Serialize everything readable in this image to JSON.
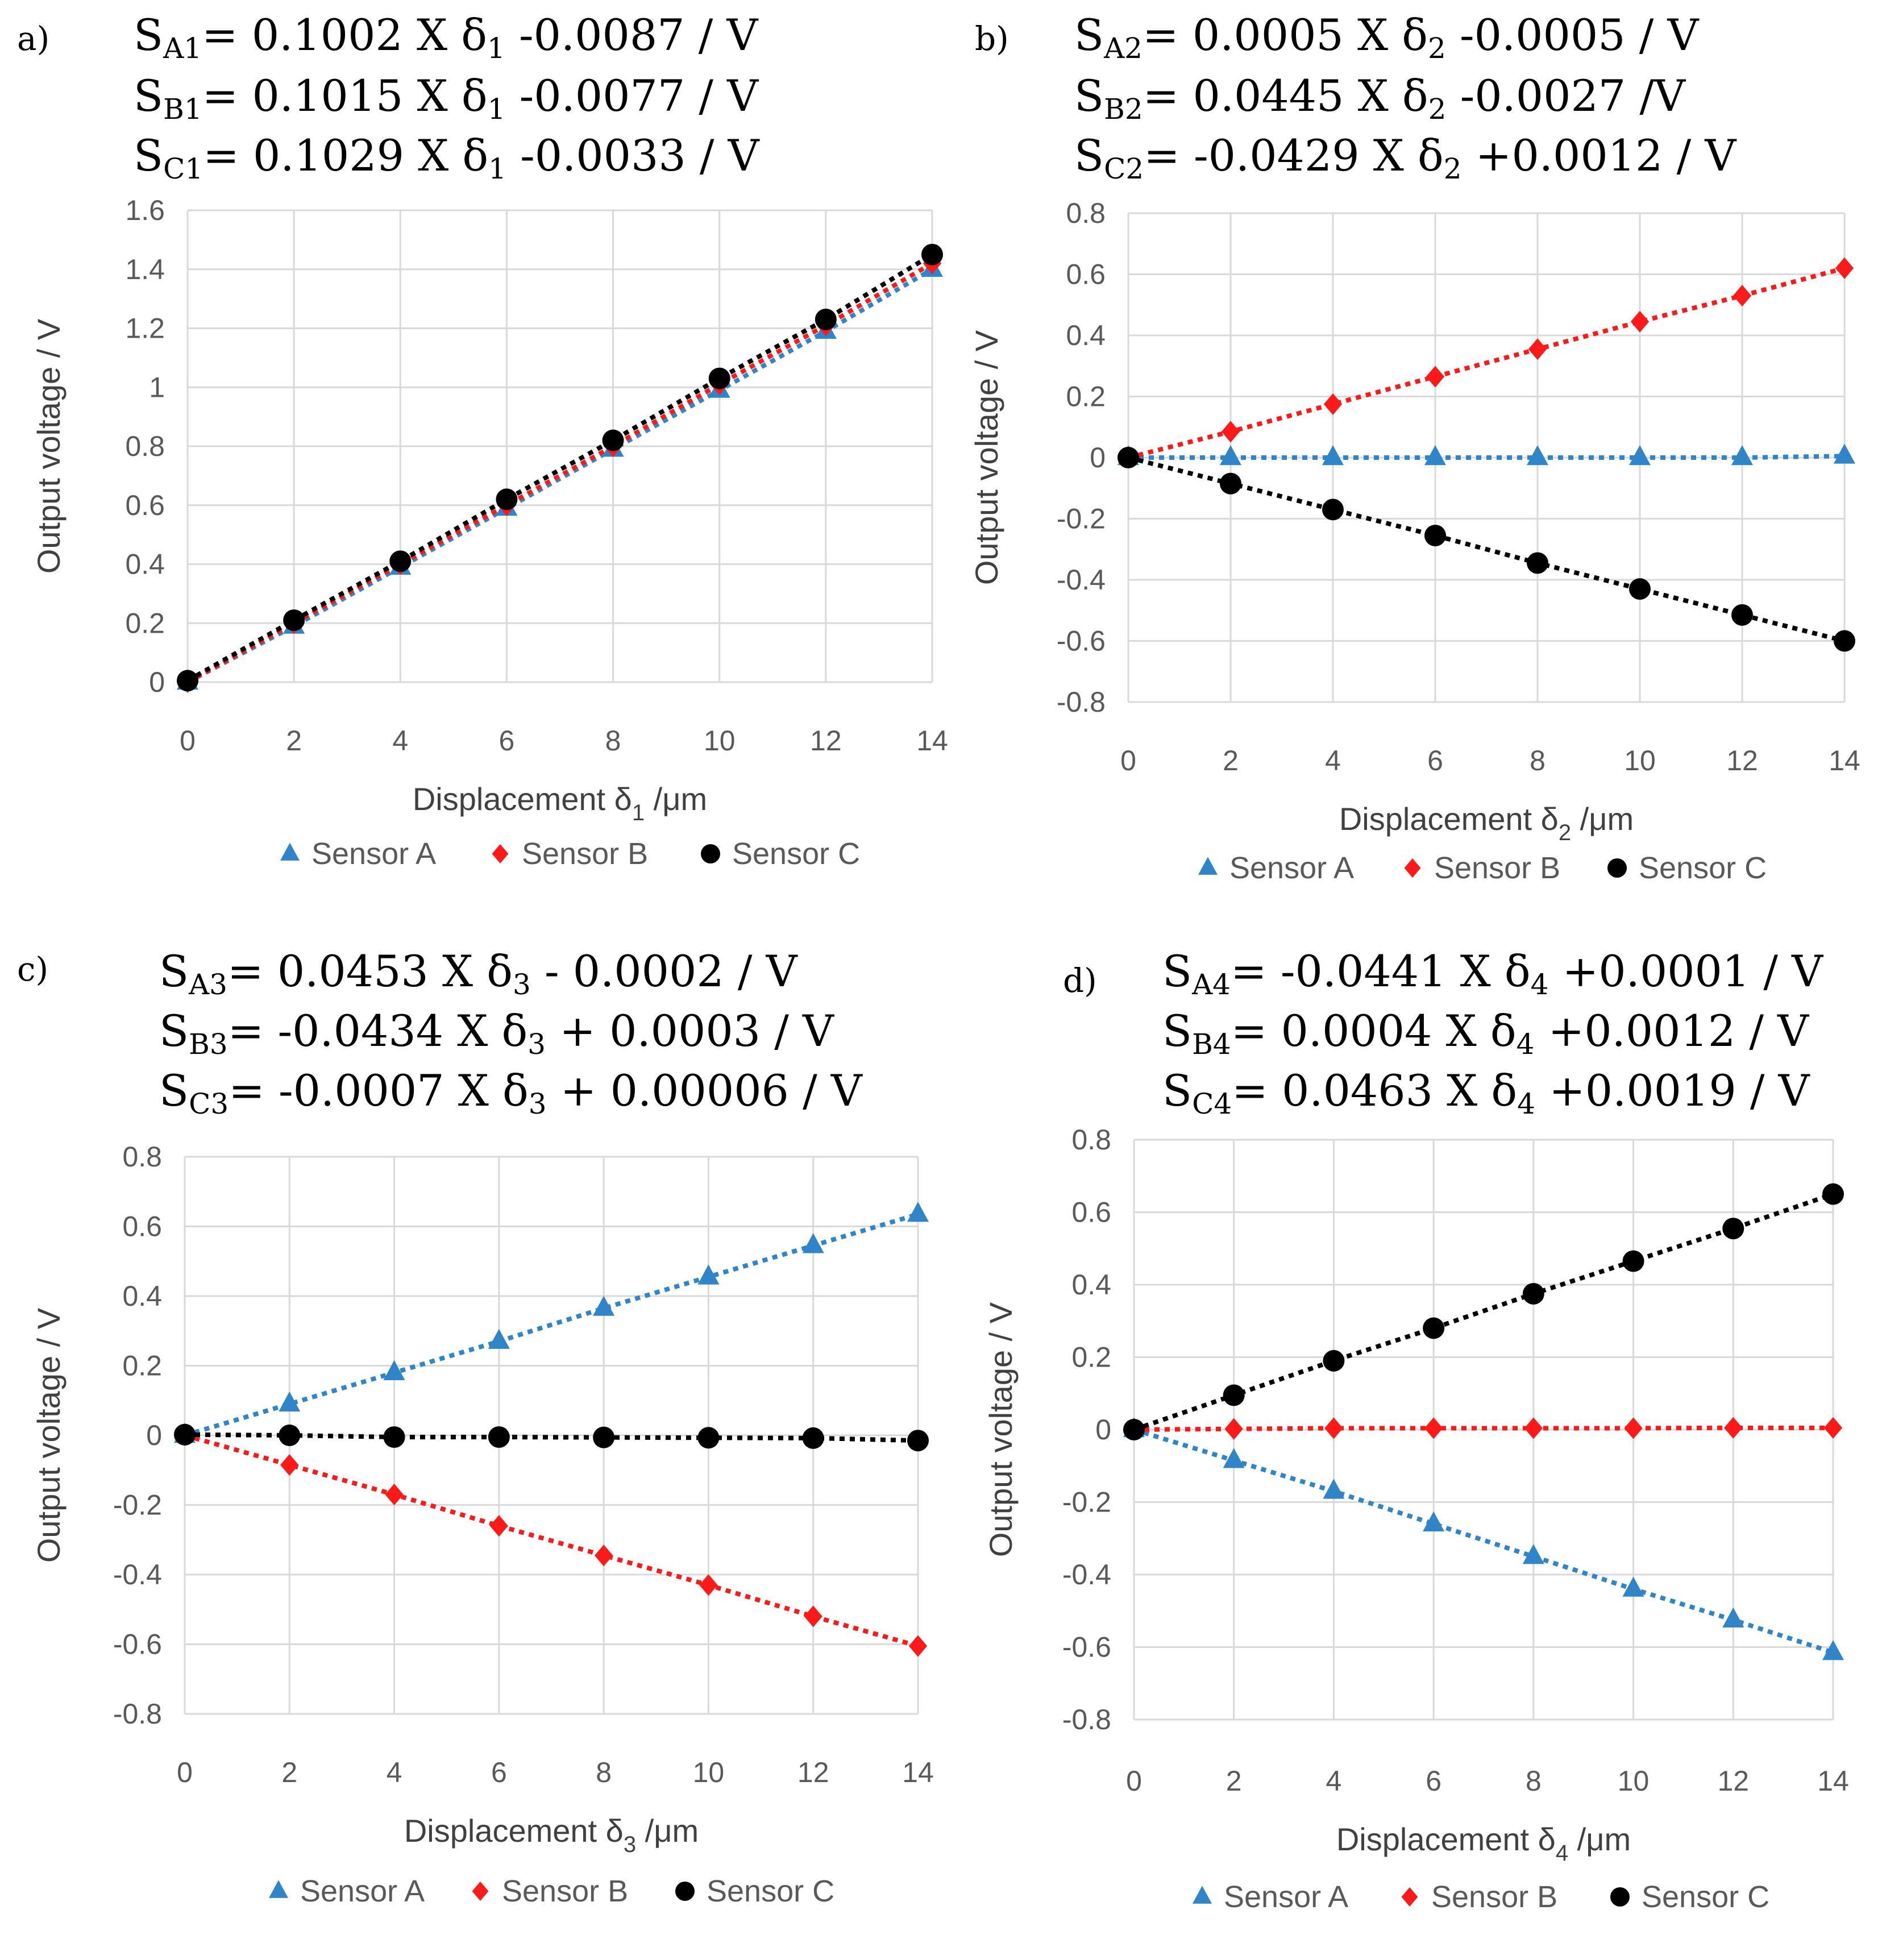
{
  "colors": {
    "sensor_a": "#2f85c8",
    "sensor_b": "#ff1a1a",
    "sensor_c": "#000000",
    "grid": "#d9d9d9",
    "tick": "#595959"
  },
  "times_symbol": "X",
  "chart_data": [
    {
      "type": "line",
      "panel_label": "a)",
      "xlabel": {
        "prefix": "Displacement ",
        "symbol": "δ",
        "sub": "1",
        "suffix": " /μm"
      },
      "ylabel": "Output voltage / V",
      "x": [
        0,
        2,
        4,
        6,
        8,
        10,
        12,
        14
      ],
      "xticks": [
        "0",
        "2",
        "4",
        "6",
        "8",
        "10",
        "12",
        "14"
      ],
      "yticks": [
        "0",
        "0.2",
        "0.4",
        "0.6",
        "0.8",
        "1",
        "1.2",
        "1.4",
        "1.6"
      ],
      "ylim": [
        0,
        1.6
      ],
      "equations": [
        {
          "sub": "A1",
          "coef": "0.1002",
          "var_sub": "1",
          "offset": "-0.0087",
          "unit": "/ V"
        },
        {
          "sub": "B1",
          "coef": "0.1015",
          "var_sub": "1",
          "offset": "-0.0077",
          "unit": "/ V"
        },
        {
          "sub": "C1",
          "coef": "0.1029",
          "var_sub": "1",
          "offset": "-0.0033",
          "unit": "/ V"
        }
      ],
      "series": [
        {
          "name": "Sensor A",
          "marker": "triangle",
          "values": [
            0,
            0.19,
            0.39,
            0.59,
            0.79,
            0.99,
            1.19,
            1.4
          ]
        },
        {
          "name": "Sensor B",
          "marker": "diamond",
          "values": [
            0,
            0.2,
            0.4,
            0.6,
            0.8,
            1.01,
            1.21,
            1.42
          ]
        },
        {
          "name": "Sensor C",
          "marker": "circle",
          "values": [
            0.005,
            0.21,
            0.41,
            0.62,
            0.82,
            1.03,
            1.23,
            1.45
          ]
        }
      ]
    },
    {
      "type": "line",
      "panel_label": "b)",
      "xlabel": {
        "prefix": "Displacement ",
        "symbol": "δ",
        "sub": "2",
        "suffix": " /μm"
      },
      "ylabel": "Output voltage / V",
      "x": [
        0,
        2,
        4,
        6,
        8,
        10,
        12,
        14
      ],
      "xticks": [
        "0",
        "2",
        "4",
        "6",
        "8",
        "10",
        "12",
        "14"
      ],
      "yticks": [
        "-0.8",
        "-0.6",
        "-0.4",
        "-0.2",
        "0",
        "0.2",
        "0.4",
        "0.6",
        "0.8"
      ],
      "ylim": [
        -0.8,
        0.8
      ],
      "equations": [
        {
          "sub": "A2",
          "coef": "0.0005",
          "var_sub": "2",
          "offset": "-0.0005",
          "unit": "/ V"
        },
        {
          "sub": "B2",
          "coef": "0.0445",
          "var_sub": "2",
          "offset": "-0.0027",
          "unit": "/V"
        },
        {
          "sub": "C2",
          "coef": "-0.0429",
          "var_sub": "2",
          "offset": "+0.0012",
          "unit": "/ V"
        }
      ],
      "series": [
        {
          "name": "Sensor A",
          "marker": "triangle",
          "values": [
            0,
            0,
            0,
            0,
            0,
            0,
            0,
            0.005
          ]
        },
        {
          "name": "Sensor B",
          "marker": "diamond",
          "values": [
            0,
            0.085,
            0.175,
            0.265,
            0.355,
            0.445,
            0.53,
            0.62
          ]
        },
        {
          "name": "Sensor C",
          "marker": "circle",
          "values": [
            0,
            -0.085,
            -0.17,
            -0.255,
            -0.345,
            -0.43,
            -0.515,
            -0.6
          ]
        }
      ]
    },
    {
      "type": "line",
      "panel_label": "c)",
      "xlabel": {
        "prefix": "Displacement ",
        "symbol": "δ",
        "sub": "3",
        "suffix": " /μm"
      },
      "ylabel": "Output voltage / V",
      "x": [
        0,
        2,
        4,
        6,
        8,
        10,
        12,
        14
      ],
      "xticks": [
        "0",
        "2",
        "4",
        "6",
        "8",
        "10",
        "12",
        "14"
      ],
      "yticks": [
        "-0.8",
        "-0.6",
        "-0.4",
        "-0.2",
        "0",
        "0.2",
        "0.4",
        "0.6",
        "0.8"
      ],
      "ylim": [
        -0.8,
        0.8
      ],
      "equations": [
        {
          "sub": "A3",
          "coef": "0.0453",
          "var_sub": "3",
          "offset": "- 0.0002",
          "unit": "/ V"
        },
        {
          "sub": "B3",
          "coef": "-0.0434",
          "var_sub": "3",
          "offset": "+ 0.0003",
          "unit": "/ V"
        },
        {
          "sub": "C3",
          "coef": "-0.0007",
          "var_sub": "3",
          "offset": "+ 0.00006",
          "unit": "/ V"
        }
      ],
      "series": [
        {
          "name": "Sensor A",
          "marker": "triangle",
          "values": [
            0,
            0.09,
            0.18,
            0.27,
            0.365,
            0.455,
            0.545,
            0.635
          ]
        },
        {
          "name": "Sensor B",
          "marker": "diamond",
          "values": [
            0,
            -0.085,
            -0.17,
            -0.26,
            -0.345,
            -0.43,
            -0.52,
            -0.605
          ]
        },
        {
          "name": "Sensor C",
          "marker": "circle",
          "values": [
            0.002,
            0,
            -0.005,
            -0.005,
            -0.006,
            -0.007,
            -0.008,
            -0.015
          ]
        }
      ]
    },
    {
      "type": "line",
      "panel_label": "d)",
      "xlabel": {
        "prefix": "Displacement ",
        "symbol": "δ",
        "sub": "4",
        "suffix": " /μm"
      },
      "ylabel": "Output voltage / V",
      "x": [
        0,
        2,
        4,
        6,
        8,
        10,
        12,
        14
      ],
      "xticks": [
        "0",
        "2",
        "4",
        "6",
        "8",
        "10",
        "12",
        "14"
      ],
      "yticks": [
        "-0.8",
        "-0.6",
        "-0.4",
        "-0.2",
        "0",
        "0.2",
        "0.4",
        "0.6",
        "0.8"
      ],
      "ylim": [
        -0.8,
        0.8
      ],
      "equations": [
        {
          "sub": "A4",
          "coef": "-0.0441",
          "var_sub": "4",
          "offset": "+0.0001",
          "unit": "/ V"
        },
        {
          "sub": "B4",
          "coef": "0.0004",
          "var_sub": "4",
          "offset": "+0.0012",
          "unit": "/ V"
        },
        {
          "sub": "C4",
          "coef": "0.0463",
          "var_sub": "4",
          "offset": "+0.0019",
          "unit": "/ V"
        }
      ],
      "series": [
        {
          "name": "Sensor A",
          "marker": "triangle",
          "values": [
            0,
            -0.085,
            -0.17,
            -0.26,
            -0.35,
            -0.44,
            -0.525,
            -0.615
          ]
        },
        {
          "name": "Sensor B",
          "marker": "diamond",
          "values": [
            0,
            0.002,
            0.004,
            0.004,
            0.004,
            0.004,
            0.005,
            0.005
          ]
        },
        {
          "name": "Sensor C",
          "marker": "circle",
          "values": [
            0,
            0.095,
            0.19,
            0.28,
            0.375,
            0.465,
            0.555,
            0.65
          ]
        }
      ]
    }
  ]
}
